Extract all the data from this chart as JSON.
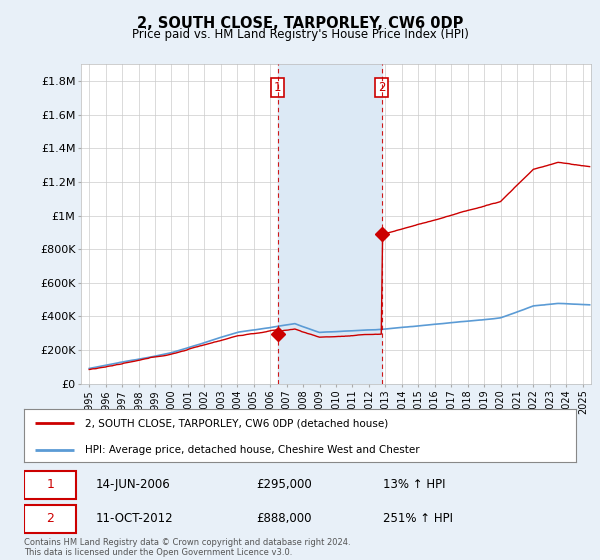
{
  "title": "2, SOUTH CLOSE, TARPORLEY, CW6 0DP",
  "subtitle": "Price paid vs. HM Land Registry's House Price Index (HPI)",
  "ylabel_ticks": [
    "£0",
    "£200K",
    "£400K",
    "£600K",
    "£800K",
    "£1M",
    "£1.2M",
    "£1.4M",
    "£1.6M",
    "£1.8M"
  ],
  "ylim": [
    0,
    1900000
  ],
  "yticks": [
    0,
    200000,
    400000,
    600000,
    800000,
    1000000,
    1200000,
    1400000,
    1600000,
    1800000
  ],
  "hpi_color": "#5b9bd5",
  "price_color": "#cc0000",
  "vline_color": "#cc0000",
  "marker_color": "#cc0000",
  "shade_color": "#dce9f5",
  "sale1_date_num": 2006.45,
  "sale1_price": 295000,
  "sale1_label": "1",
  "sale1_date_str": "14-JUN-2006",
  "sale1_price_str": "£295,000",
  "sale1_hpi_str": "13% ↑ HPI",
  "sale2_date_num": 2012.78,
  "sale2_price": 888000,
  "sale2_label": "2",
  "sale2_date_str": "11-OCT-2012",
  "sale2_price_str": "£888,000",
  "sale2_hpi_str": "251% ↑ HPI",
  "legend_line1": "2, SOUTH CLOSE, TARPORLEY, CW6 0DP (detached house)",
  "legend_line2": "HPI: Average price, detached house, Cheshire West and Chester",
  "footnote": "Contains HM Land Registry data © Crown copyright and database right 2024.\nThis data is licensed under the Open Government Licence v3.0.",
  "xlim_left": 1994.5,
  "xlim_right": 2025.5,
  "background_color": "#e8f0f8",
  "plot_bg_color": "#ffffff",
  "grid_color": "#cccccc"
}
